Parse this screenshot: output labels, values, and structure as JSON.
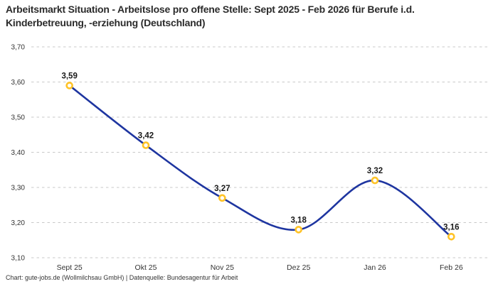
{
  "footer": "Chart: gute-jobs.de (Wollmilchsau GmbH) | Datenquelle: Bundesagentur für Arbeit",
  "chart_data": {
    "type": "line",
    "title": "Arbeitsmarkt Situation - Arbeitslose pro offene Stelle: Sept 2025 - Feb 2026 für Berufe i.d. Kinderbetreuung, -erziehung (Deutschland)",
    "categories": [
      "Sept 25",
      "Okt 25",
      "Nov 25",
      "Dez 25",
      "Jan 26",
      "Feb 26"
    ],
    "values": [
      3.59,
      3.42,
      3.27,
      3.18,
      3.32,
      3.16
    ],
    "value_labels": [
      "3,59",
      "3,42",
      "3,27",
      "3,18",
      "3,32",
      "3,16"
    ],
    "xlabel": "",
    "ylabel": "",
    "ylim": [
      3.1,
      3.7
    ],
    "ytick_step": 0.1,
    "ytick_labels": [
      "3,10",
      "3,20",
      "3,30",
      "3,40",
      "3,50",
      "3,60",
      "3,70"
    ],
    "grid": "horizontal-dashed",
    "legend": "none",
    "curve": "smooth",
    "colors": {
      "line": "#1e35a0",
      "marker_stroke": "#ffc327",
      "marker_fill": "#ffffff",
      "grid": "#c9c9c9",
      "axis_text": "#333333",
      "point_label": "#1a1a1a",
      "title_text": "#2b2b2b",
      "background": "#ffffff"
    }
  }
}
